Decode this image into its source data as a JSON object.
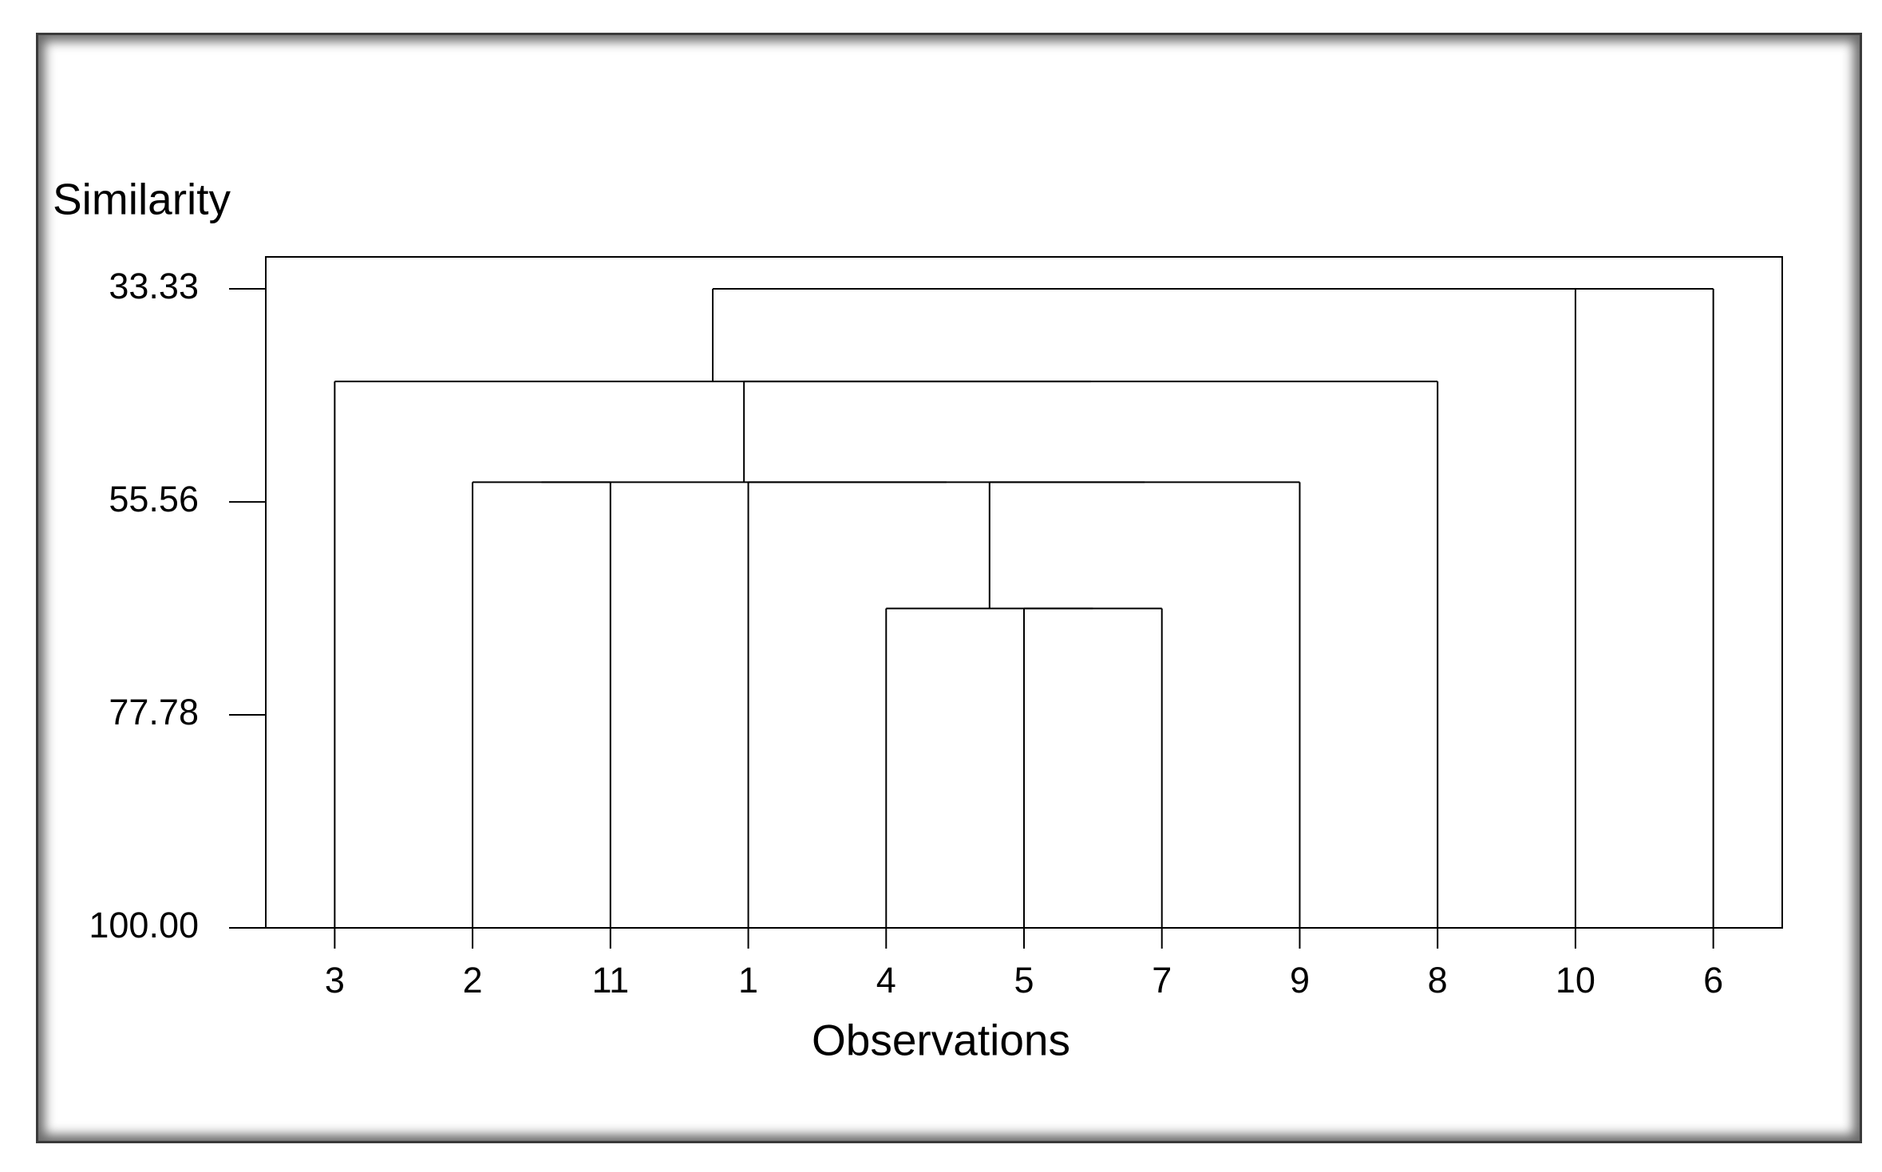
{
  "chart_data": {
    "type": "dendrogram",
    "y_label": "Similarity",
    "x_label": "Observations",
    "ylim": [
      30,
      100
    ],
    "yticks": [
      33.33,
      55.56,
      77.78,
      {
        "value": 100,
        "label": "100.00"
      }
    ],
    "tree": {
      "height": 33.33,
      "children": [
        {
          "height": 43,
          "children": [
            "3",
            {
              "height": 43,
              "children": [
                {
                  "height": 53.5,
                  "children": [
                    {
                      "height": 53.5,
                      "children": [
                        "2",
                        "11"
                      ]
                    },
                    {
                      "height": 53.5,
                      "children": [
                        "1",
                        {
                          "height": 53.5,
                          "children": [
                            {
                              "height": 66.67,
                              "children": [
                                "4",
                                {
                                  "height": 66.67,
                                  "children": [
                                    "5",
                                    "7"
                                  ]
                                }
                              ]
                            },
                            "9"
                          ]
                        }
                      ]
                    }
                  ]
                },
                "8"
              ]
            }
          ]
        },
        {
          "height": 33.33,
          "children": [
            "10",
            "6"
          ]
        }
      ]
    }
  }
}
